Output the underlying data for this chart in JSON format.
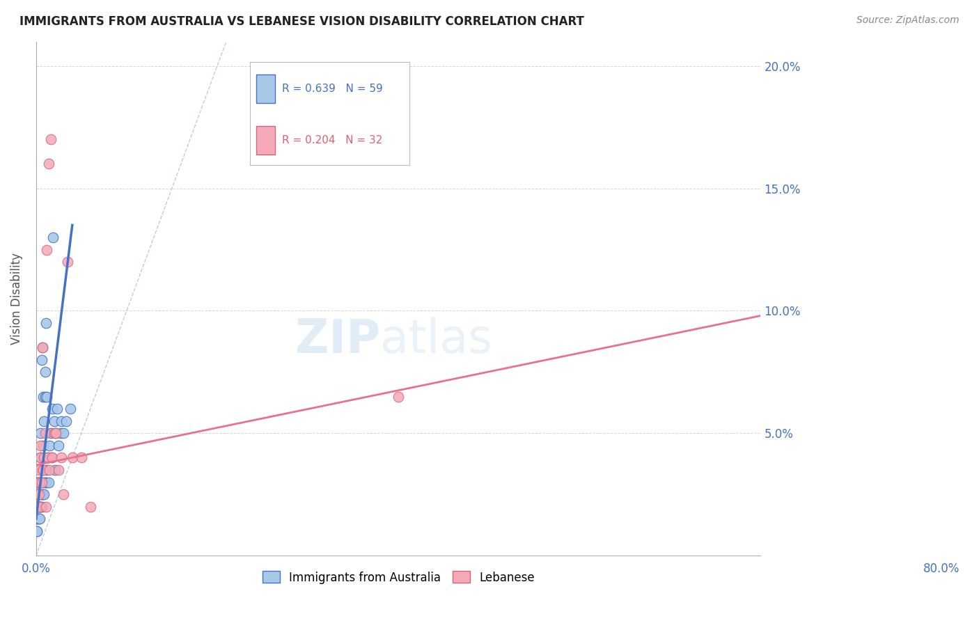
{
  "title": "IMMIGRANTS FROM AUSTRALIA VS LEBANESE VISION DISABILITY CORRELATION CHART",
  "source": "Source: ZipAtlas.com",
  "ylabel": "Vision Disability",
  "xlim": [
    0,
    0.8
  ],
  "ylim": [
    0,
    0.21
  ],
  "legend_r1": "R = 0.639",
  "legend_n1": "N = 59",
  "legend_r2": "R = 0.204",
  "legend_n2": "N = 32",
  "color_australia": "#a8c8e8",
  "color_lebanese": "#f4a8b8",
  "color_line_australia": "#4472c4",
  "color_line_lebanese": "#e87090",
  "australia_x": [
    0.001,
    0.001,
    0.001,
    0.001,
    0.002,
    0.002,
    0.002,
    0.002,
    0.002,
    0.003,
    0.003,
    0.003,
    0.003,
    0.004,
    0.004,
    0.004,
    0.004,
    0.005,
    0.005,
    0.005,
    0.005,
    0.005,
    0.006,
    0.006,
    0.006,
    0.006,
    0.007,
    0.007,
    0.007,
    0.008,
    0.008,
    0.008,
    0.009,
    0.009,
    0.01,
    0.01,
    0.01,
    0.011,
    0.011,
    0.012,
    0.012,
    0.013,
    0.014,
    0.015,
    0.016,
    0.017,
    0.018,
    0.019,
    0.02,
    0.021,
    0.022,
    0.023,
    0.025,
    0.027,
    0.028,
    0.03,
    0.033,
    0.038,
    0.001
  ],
  "australia_y": [
    0.02,
    0.025,
    0.03,
    0.01,
    0.015,
    0.03,
    0.02,
    0.025,
    0.015,
    0.025,
    0.03,
    0.02,
    0.015,
    0.025,
    0.03,
    0.02,
    0.015,
    0.02,
    0.03,
    0.04,
    0.05,
    0.02,
    0.025,
    0.035,
    0.08,
    0.02,
    0.035,
    0.085,
    0.025,
    0.03,
    0.045,
    0.065,
    0.025,
    0.055,
    0.03,
    0.065,
    0.075,
    0.03,
    0.095,
    0.035,
    0.065,
    0.04,
    0.03,
    0.045,
    0.05,
    0.04,
    0.06,
    0.13,
    0.055,
    0.035,
    0.05,
    0.06,
    0.045,
    0.05,
    0.055,
    0.05,
    0.055,
    0.06,
    0.01
  ],
  "lebanese_x": [
    0.001,
    0.001,
    0.002,
    0.002,
    0.003,
    0.003,
    0.004,
    0.004,
    0.005,
    0.005,
    0.006,
    0.007,
    0.008,
    0.009,
    0.01,
    0.011,
    0.012,
    0.013,
    0.014,
    0.015,
    0.016,
    0.018,
    0.02,
    0.022,
    0.025,
    0.028,
    0.03,
    0.035,
    0.04,
    0.05,
    0.06,
    0.4
  ],
  "lebanese_y": [
    0.02,
    0.025,
    0.03,
    0.02,
    0.035,
    0.025,
    0.03,
    0.02,
    0.04,
    0.045,
    0.03,
    0.085,
    0.035,
    0.04,
    0.05,
    0.02,
    0.125,
    0.04,
    0.16,
    0.035,
    0.17,
    0.04,
    0.05,
    0.05,
    0.035,
    0.04,
    0.025,
    0.12,
    0.04,
    0.04,
    0.02,
    0.065
  ],
  "australia_line_x": [
    0.0,
    0.04
  ],
  "australia_line_y": [
    0.015,
    0.135
  ],
  "lebanese_line_x": [
    0.0,
    0.8
  ],
  "lebanese_line_y": [
    0.037,
    0.098
  ],
  "diag_line_x": [
    0.0,
    0.21
  ],
  "diag_line_y": [
    0.0,
    0.21
  ],
  "yticks": [
    0.05,
    0.1,
    0.15,
    0.2
  ],
  "ytick_labels": [
    "5.0%",
    "10.0%",
    "15.0%",
    "20.0%"
  ]
}
